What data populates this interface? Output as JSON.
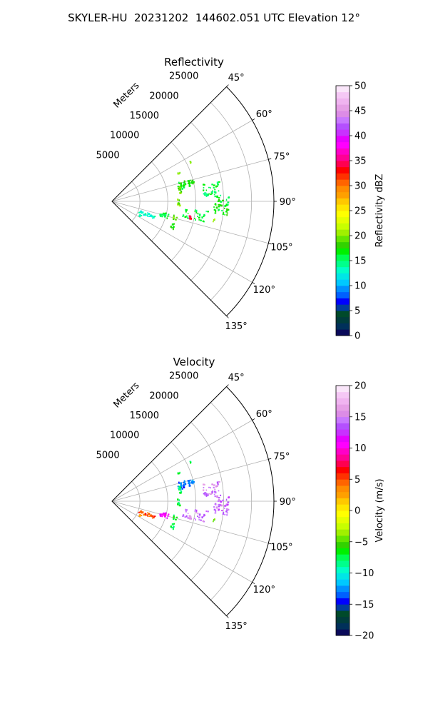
{
  "page": {
    "title": "SKYLER-HU  20231202  144602.051 UTC Elevation 12°"
  },
  "chart_data": [
    {
      "type": "heatmap",
      "projection": "polar-sector",
      "title": "Reflectivity",
      "radial_label": "Meters",
      "radial_ticks": [
        "5000",
        "10000",
        "15000",
        "20000",
        "25000"
      ],
      "radial_tick_values": [
        5000,
        10000,
        15000,
        20000,
        25000
      ],
      "angle_ticks": [
        "45°",
        "60°",
        "75°",
        "90°",
        "105°",
        "120°",
        "135°"
      ],
      "angle_tick_values": [
        45,
        60,
        75,
        90,
        105,
        120,
        135
      ],
      "theta_range": [
        45,
        135
      ],
      "r_range": [
        0,
        29000
      ],
      "grid": true,
      "colorbar": {
        "label": "Reflectivity dBZ",
        "range": [
          0,
          50
        ],
        "ticks": [
          "0",
          "5",
          "10",
          "15",
          "20",
          "25",
          "30",
          "35",
          "40",
          "45",
          "50"
        ],
        "tick_values": [
          0,
          5,
          10,
          15,
          20,
          25,
          30,
          35,
          40,
          45,
          50
        ],
        "colors": [
          "#0a0a5a",
          "#00305a",
          "#003c3c",
          "#004a2a",
          "#003ca0",
          "#0000ff",
          "#0060ff",
          "#0090ff",
          "#00c8ff",
          "#00e6e6",
          "#00ffc8",
          "#00ff8c",
          "#00ff50",
          "#00f000",
          "#32d200",
          "#64e600",
          "#a0f000",
          "#c8ff00",
          "#e6ff00",
          "#ffff00",
          "#ffe600",
          "#ffc800",
          "#ffa000",
          "#ff8c00",
          "#ff6400",
          "#ff3200",
          "#ff0000",
          "#ff0050",
          "#ff0096",
          "#ff00c8",
          "#ff00ff",
          "#e600ff",
          "#c832ff",
          "#b450ff",
          "#c878ff",
          "#dc8ce6",
          "#e6a0e6",
          "#f0b4f0",
          "#f5c8f5",
          "#fae6fa"
        ]
      },
      "echoes": [
        {
          "theta": 76,
          "r": 13500,
          "dtheta": 6,
          "dr": 3000,
          "value": 17,
          "density": 0.8
        },
        {
          "theta": 83,
          "r": 17800,
          "dtheta": 8,
          "dr": 3200,
          "value": 16,
          "density": 0.55
        },
        {
          "theta": 92,
          "r": 19500,
          "dtheta": 9,
          "dr": 2800,
          "value": 17,
          "density": 0.6
        },
        {
          "theta": 99,
          "r": 15000,
          "dtheta": 7,
          "dr": 4500,
          "value": 16,
          "density": 0.35
        },
        {
          "theta": 80,
          "r": 12200,
          "dtheta": 6,
          "dr": 500,
          "value": 19,
          "density": 0.9
        },
        {
          "theta": 90,
          "r": 11800,
          "dtheta": 6,
          "dr": 400,
          "value": 20,
          "density": 0.9
        },
        {
          "theta": 104,
          "r": 9500,
          "dtheta": 5,
          "dr": 1500,
          "value": 16,
          "density": 0.6
        },
        {
          "theta": 110,
          "r": 6500,
          "dtheta": 5,
          "dr": 3000,
          "value": 13,
          "density": 0.55
        },
        {
          "theta": 116,
          "r": 5500,
          "dtheta": 2,
          "dr": 300,
          "value": 14,
          "density": 0.8
        },
        {
          "theta": 104,
          "r": 11500,
          "dtheta": 4,
          "dr": 600,
          "value": 19,
          "density": 0.8
        },
        {
          "theta": 112,
          "r": 11600,
          "dtheta": 5,
          "dr": 600,
          "value": 17,
          "density": 0.6
        },
        {
          "theta": 67,
          "r": 13000,
          "dtheta": 2,
          "dr": 400,
          "value": 19,
          "density": 0.9
        },
        {
          "theta": 63,
          "r": 15700,
          "dtheta": 1,
          "dr": 200,
          "value": 19,
          "density": 0.9
        },
        {
          "theta": 101,
          "r": 14200,
          "dtheta": 2,
          "dr": 500,
          "value": 33,
          "density": 0.7
        },
        {
          "theta": 100,
          "r": 18500,
          "dtheta": 2,
          "dr": 400,
          "value": 20,
          "density": 0.5
        }
      ]
    },
    {
      "type": "heatmap",
      "projection": "polar-sector",
      "title": "Velocity",
      "radial_label": "Meters",
      "radial_ticks": [
        "5000",
        "10000",
        "15000",
        "20000",
        "25000"
      ],
      "radial_tick_values": [
        5000,
        10000,
        15000,
        20000,
        25000
      ],
      "angle_ticks": [
        "45°",
        "60°",
        "75°",
        "90°",
        "105°",
        "120°",
        "135°"
      ],
      "angle_tick_values": [
        45,
        60,
        75,
        90,
        105,
        120,
        135
      ],
      "theta_range": [
        45,
        135
      ],
      "r_range": [
        0,
        29000
      ],
      "grid": true,
      "colorbar": {
        "label": "Velocity (m/s)",
        "range": [
          -20,
          20
        ],
        "ticks": [
          "−20",
          "−15",
          "−10",
          "−5",
          "0",
          "5",
          "10",
          "15",
          "20"
        ],
        "tick_values": [
          -20,
          -15,
          -10,
          -5,
          0,
          5,
          10,
          15,
          20
        ],
        "colors": [
          "#0a0a5a",
          "#00305a",
          "#003c3c",
          "#004a2a",
          "#003ca0",
          "#0000ff",
          "#0060ff",
          "#0090ff",
          "#00c8ff",
          "#00e6e6",
          "#00ffc8",
          "#00ff8c",
          "#00ff50",
          "#00f000",
          "#32d200",
          "#64e600",
          "#a0f000",
          "#c8ff00",
          "#e6ff00",
          "#ffff00",
          "#ffe600",
          "#ffc800",
          "#ffa000",
          "#ff8c00",
          "#ff6400",
          "#ff3200",
          "#ff0000",
          "#ff0050",
          "#ff0096",
          "#ff00c8",
          "#ff00ff",
          "#e600ff",
          "#c832ff",
          "#b450ff",
          "#c878ff",
          "#dc8ce6",
          "#e6a0e6",
          "#f0b4f0",
          "#f5c8f5",
          "#fae6fa"
        ]
      },
      "echoes": [
        {
          "theta": 76,
          "r": 13500,
          "dtheta": 6,
          "dr": 3000,
          "value": -13,
          "density": 0.8
        },
        {
          "theta": 83,
          "r": 17800,
          "dtheta": 8,
          "dr": 3200,
          "value": 15,
          "density": 0.55
        },
        {
          "theta": 92,
          "r": 19500,
          "dtheta": 9,
          "dr": 2800,
          "value": 14,
          "density": 0.6
        },
        {
          "theta": 99,
          "r": 15000,
          "dtheta": 7,
          "dr": 4500,
          "value": 14,
          "density": 0.35
        },
        {
          "theta": 80,
          "r": 12200,
          "dtheta": 6,
          "dr": 500,
          "value": -8,
          "density": 0.9
        },
        {
          "theta": 90,
          "r": 11800,
          "dtheta": 6,
          "dr": 400,
          "value": -7,
          "density": 0.9
        },
        {
          "theta": 104,
          "r": 9500,
          "dtheta": 5,
          "dr": 1500,
          "value": 11,
          "density": 0.6
        },
        {
          "theta": 110,
          "r": 6500,
          "dtheta": 5,
          "dr": 3000,
          "value": 5,
          "density": 0.55
        },
        {
          "theta": 116,
          "r": 5500,
          "dtheta": 2,
          "dr": 300,
          "value": 3,
          "density": 0.8
        },
        {
          "theta": 104,
          "r": 11500,
          "dtheta": 4,
          "dr": 600,
          "value": -7,
          "density": 0.8
        },
        {
          "theta": 112,
          "r": 11600,
          "dtheta": 5,
          "dr": 600,
          "value": -8,
          "density": 0.6
        },
        {
          "theta": 67,
          "r": 13000,
          "dtheta": 2,
          "dr": 400,
          "value": -8,
          "density": 0.9
        },
        {
          "theta": 63,
          "r": 15700,
          "dtheta": 1,
          "dr": 200,
          "value": -8,
          "density": 0.9
        },
        {
          "theta": 101,
          "r": 14200,
          "dtheta": 2,
          "dr": 500,
          "value": 15,
          "density": 0.7
        },
        {
          "theta": 100,
          "r": 18500,
          "dtheta": 2,
          "dr": 400,
          "value": -5,
          "density": 0.5
        }
      ]
    }
  ]
}
